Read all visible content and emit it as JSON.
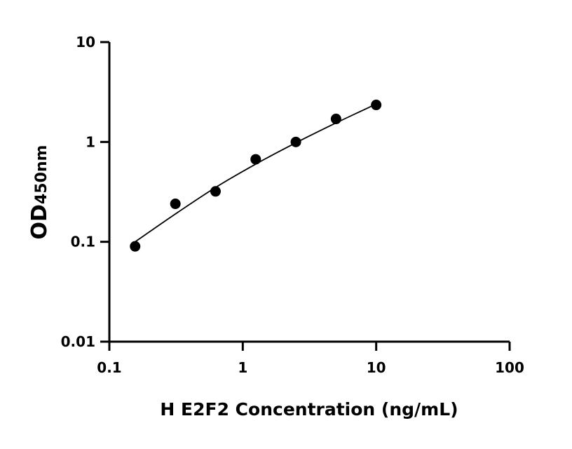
{
  "chart_data": {
    "type": "scatter",
    "title": "",
    "xlabel": "H E2F2 Concentration (ng/mL)",
    "ylabel_main": "OD",
    "ylabel_sub": "450nm",
    "xscale": "log",
    "yscale": "log",
    "xlim": [
      0.1,
      100
    ],
    "ylim": [
      0.01,
      10
    ],
    "xticks": [
      "0.1",
      "1",
      "10",
      "100"
    ],
    "yticks": [
      "0.01",
      "0.1",
      "1",
      "10"
    ],
    "grid": false,
    "legend": "none",
    "points": [
      {
        "x": 0.156,
        "y": 0.09
      },
      {
        "x": 0.3125,
        "y": 0.24
      },
      {
        "x": 0.625,
        "y": 0.32
      },
      {
        "x": 1.25,
        "y": 0.67
      },
      {
        "x": 2.5,
        "y": 1.0
      },
      {
        "x": 5,
        "y": 1.7
      },
      {
        "x": 10,
        "y": 2.35
      }
    ],
    "fit_curve": [
      {
        "x": 0.156,
        "y": 0.1
      },
      {
        "x": 0.3125,
        "y": 0.19
      },
      {
        "x": 0.625,
        "y": 0.35
      },
      {
        "x": 1.25,
        "y": 0.6
      },
      {
        "x": 2.5,
        "y": 0.98
      },
      {
        "x": 5,
        "y": 1.55
      },
      {
        "x": 10,
        "y": 2.4
      }
    ],
    "colors": {
      "points": "#000000",
      "line": "#000000"
    }
  }
}
